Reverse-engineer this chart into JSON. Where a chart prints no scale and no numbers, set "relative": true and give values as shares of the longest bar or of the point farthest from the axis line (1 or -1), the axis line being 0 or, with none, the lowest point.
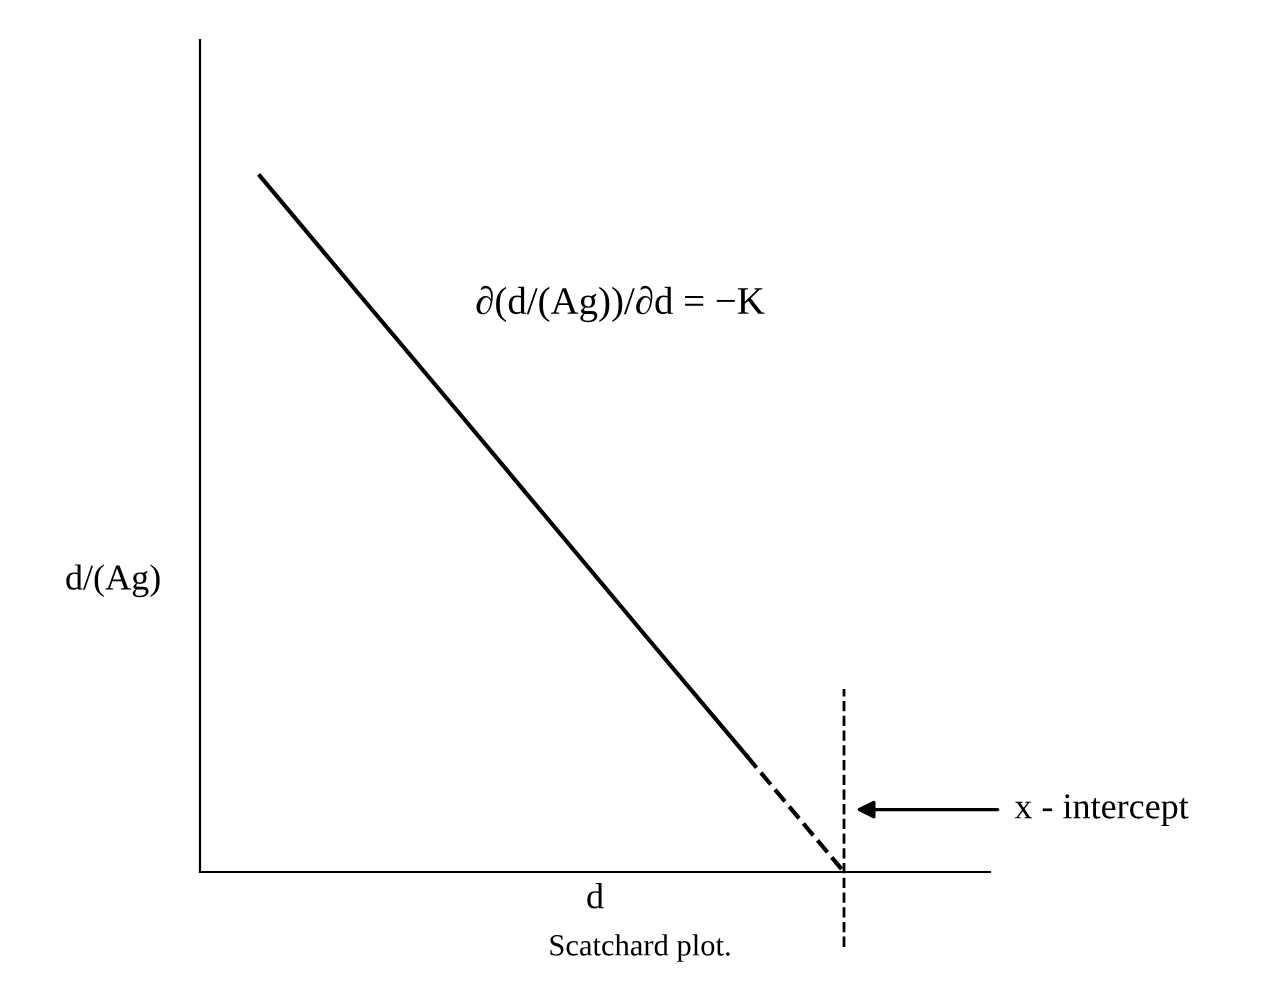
{
  "chart_data": {
    "type": "line",
    "relative": true,
    "tick_labels": false,
    "xlabel": "d",
    "ylabel": "d/(Ag)",
    "categories": [
      null,
      null,
      null,
      null,
      null,
      null,
      null
    ],
    "series": [
      {
        "color": "#000000",
        "line_style": "solid",
        "values": [
          1,
          0.833,
          0.667,
          0.5,
          0.333,
          0.167,
          null
        ]
      },
      {
        "color": "#000000",
        "line_style": "dashed",
        "values": [
          null,
          null,
          null,
          null,
          null,
          0.167,
          0
        ]
      }
    ],
    "annotations": [
      "∂(d/(Ag))/∂d = −K",
      "x - intercept",
      "Scatchard plot."
    ]
  }
}
